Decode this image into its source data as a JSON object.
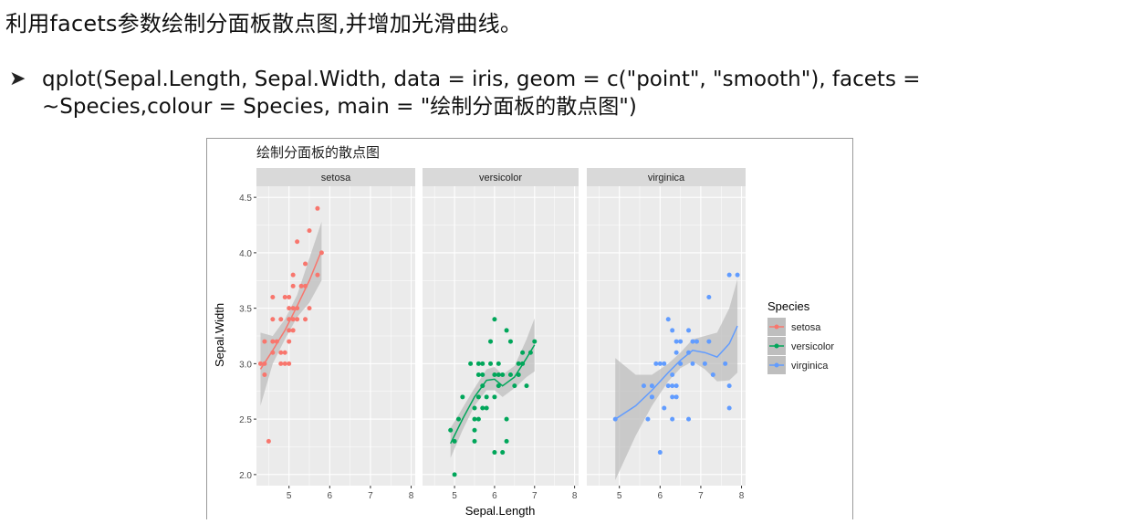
{
  "slide": {
    "heading": "利用facets参数绘制分面板散点图,并增加光滑曲线。",
    "bullet_line1": "qplot(Sepal.Length, Sepal.Width, data = iris, geom = c(\"point\", \"smooth\"), facets =",
    "bullet_line2": "~Species,colour = Species, main = \"绘制分面板的散点图\")",
    "bullet_icon": "arrow-bullet-icon"
  },
  "colors": {
    "setosa": "#F8766D",
    "versicolor": "#00A65A",
    "virginica": "#619CFF",
    "panel_bg": "#EBEBEB",
    "strip_bg": "#D9D9D9",
    "grid": "#FFFFFF",
    "ribbon": "#BEBEBE"
  },
  "chart_data": {
    "type": "scatter",
    "title": "绘制分面板的散点图",
    "xlabel": "Sepal.Length",
    "ylabel": "Sepal.Width",
    "xlim": [
      4.2,
      8.1
    ],
    "ylim": [
      1.9,
      4.6
    ],
    "x_ticks": [
      5,
      6,
      7,
      8
    ],
    "x_tick_labels": [
      "5",
      "6",
      "7",
      "8"
    ],
    "y_ticks": [
      2.0,
      2.5,
      3.0,
      3.5,
      4.0,
      4.5
    ],
    "y_tick_labels": [
      "2.0",
      "2.5",
      "3.0",
      "3.5",
      "4.0",
      "4.5"
    ],
    "grid": true,
    "legend": {
      "title": "Species",
      "position": "right",
      "entries": [
        "setosa",
        "versicolor",
        "virginica"
      ]
    },
    "facets": [
      {
        "name": "setosa",
        "points": [
          [
            4.3,
            3.0
          ],
          [
            4.4,
            2.9
          ],
          [
            4.4,
            3.0
          ],
          [
            4.4,
            3.2
          ],
          [
            4.5,
            2.3
          ],
          [
            4.6,
            3.1
          ],
          [
            4.6,
            3.4
          ],
          [
            4.6,
            3.6
          ],
          [
            4.6,
            3.2
          ],
          [
            4.7,
            3.2
          ],
          [
            4.8,
            3.4
          ],
          [
            4.8,
            3.0
          ],
          [
            4.8,
            3.1
          ],
          [
            4.9,
            3.0
          ],
          [
            4.9,
            3.1
          ],
          [
            4.9,
            3.6
          ],
          [
            5.0,
            3.6
          ],
          [
            5.0,
            3.4
          ],
          [
            5.0,
            3.0
          ],
          [
            5.0,
            3.3
          ],
          [
            5.0,
            3.5
          ],
          [
            5.0,
            3.2
          ],
          [
            5.1,
            3.5
          ],
          [
            5.1,
            3.7
          ],
          [
            5.1,
            3.3
          ],
          [
            5.1,
            3.8
          ],
          [
            5.1,
            3.4
          ],
          [
            5.2,
            3.5
          ],
          [
            5.2,
            3.4
          ],
          [
            5.2,
            4.1
          ],
          [
            5.3,
            3.7
          ],
          [
            5.4,
            3.9
          ],
          [
            5.4,
            3.7
          ],
          [
            5.4,
            3.4
          ],
          [
            5.5,
            4.2
          ],
          [
            5.5,
            3.5
          ],
          [
            5.7,
            4.4
          ],
          [
            5.7,
            3.8
          ],
          [
            5.8,
            4.0
          ]
        ],
        "smooth": [
          [
            4.3,
            2.95
          ],
          [
            4.6,
            3.12
          ],
          [
            4.9,
            3.3
          ],
          [
            5.2,
            3.52
          ],
          [
            5.5,
            3.75
          ],
          [
            5.8,
            4.02
          ]
        ],
        "band_low": [
          [
            4.3,
            2.62
          ],
          [
            4.6,
            3.0
          ],
          [
            4.9,
            3.22
          ],
          [
            5.2,
            3.42
          ],
          [
            5.5,
            3.55
          ],
          [
            5.8,
            3.75
          ]
        ],
        "band_high": [
          [
            4.3,
            3.28
          ],
          [
            4.6,
            3.25
          ],
          [
            4.9,
            3.4
          ],
          [
            5.2,
            3.62
          ],
          [
            5.5,
            3.95
          ],
          [
            5.8,
            4.28
          ]
        ]
      },
      {
        "name": "versicolor",
        "points": [
          [
            4.9,
            2.4
          ],
          [
            5.0,
            2.0
          ],
          [
            5.0,
            2.3
          ],
          [
            5.1,
            2.5
          ],
          [
            5.2,
            2.7
          ],
          [
            5.4,
            3.0
          ],
          [
            5.5,
            2.3
          ],
          [
            5.5,
            2.4
          ],
          [
            5.5,
            2.5
          ],
          [
            5.5,
            2.6
          ],
          [
            5.6,
            2.9
          ],
          [
            5.6,
            3.0
          ],
          [
            5.6,
            2.5
          ],
          [
            5.6,
            2.7
          ],
          [
            5.7,
            2.8
          ],
          [
            5.7,
            2.6
          ],
          [
            5.7,
            3.0
          ],
          [
            5.7,
            2.9
          ],
          [
            5.8,
            2.7
          ],
          [
            5.8,
            2.6
          ],
          [
            5.9,
            3.0
          ],
          [
            5.9,
            3.2
          ],
          [
            6.0,
            2.2
          ],
          [
            6.0,
            2.9
          ],
          [
            6.0,
            2.7
          ],
          [
            6.0,
            3.4
          ],
          [
            6.1,
            2.8
          ],
          [
            6.1,
            3.0
          ],
          [
            6.1,
            2.9
          ],
          [
            6.2,
            2.2
          ],
          [
            6.2,
            2.9
          ],
          [
            6.3,
            3.3
          ],
          [
            6.3,
            2.5
          ],
          [
            6.3,
            2.3
          ],
          [
            6.4,
            3.2
          ],
          [
            6.4,
            2.9
          ],
          [
            6.5,
            2.8
          ],
          [
            6.6,
            2.9
          ],
          [
            6.6,
            3.0
          ],
          [
            6.7,
            3.1
          ],
          [
            6.7,
            3.0
          ],
          [
            6.8,
            2.8
          ],
          [
            6.9,
            3.1
          ],
          [
            7.0,
            3.2
          ]
        ],
        "smooth": [
          [
            4.9,
            2.28
          ],
          [
            5.2,
            2.5
          ],
          [
            5.5,
            2.7
          ],
          [
            5.8,
            2.85
          ],
          [
            6.0,
            2.86
          ],
          [
            6.2,
            2.8
          ],
          [
            6.5,
            2.88
          ],
          [
            6.8,
            3.05
          ],
          [
            7.0,
            3.17
          ]
        ],
        "band_low": [
          [
            4.9,
            2.15
          ],
          [
            5.2,
            2.4
          ],
          [
            5.5,
            2.62
          ],
          [
            5.8,
            2.76
          ],
          [
            6.0,
            2.76
          ],
          [
            6.2,
            2.7
          ],
          [
            6.5,
            2.78
          ],
          [
            6.8,
            2.88
          ],
          [
            7.0,
            2.93
          ]
        ],
        "band_high": [
          [
            4.9,
            2.42
          ],
          [
            5.2,
            2.6
          ],
          [
            5.5,
            2.78
          ],
          [
            5.8,
            2.95
          ],
          [
            6.0,
            2.97
          ],
          [
            6.2,
            2.9
          ],
          [
            6.5,
            2.98
          ],
          [
            6.8,
            3.22
          ],
          [
            7.0,
            3.41
          ]
        ]
      },
      {
        "name": "virginica",
        "points": [
          [
            4.9,
            2.5
          ],
          [
            5.6,
            2.8
          ],
          [
            5.7,
            2.5
          ],
          [
            5.8,
            2.7
          ],
          [
            5.8,
            2.8
          ],
          [
            5.8,
            2.7
          ],
          [
            5.9,
            3.0
          ],
          [
            6.0,
            2.2
          ],
          [
            6.0,
            3.0
          ],
          [
            6.1,
            2.6
          ],
          [
            6.1,
            3.0
          ],
          [
            6.2,
            2.8
          ],
          [
            6.2,
            3.4
          ],
          [
            6.3,
            3.3
          ],
          [
            6.3,
            2.9
          ],
          [
            6.3,
            2.5
          ],
          [
            6.3,
            2.7
          ],
          [
            6.3,
            2.8
          ],
          [
            6.4,
            2.8
          ],
          [
            6.4,
            2.7
          ],
          [
            6.4,
            3.2
          ],
          [
            6.4,
            3.1
          ],
          [
            6.5,
            3.0
          ],
          [
            6.5,
            3.2
          ],
          [
            6.7,
            3.3
          ],
          [
            6.7,
            2.5
          ],
          [
            6.7,
            3.1
          ],
          [
            6.8,
            3.0
          ],
          [
            6.8,
            3.2
          ],
          [
            6.9,
            3.2
          ],
          [
            7.1,
            3.0
          ],
          [
            7.2,
            3.6
          ],
          [
            7.2,
            3.2
          ],
          [
            7.3,
            2.9
          ],
          [
            7.6,
            3.0
          ],
          [
            7.7,
            3.8
          ],
          [
            7.7,
            2.6
          ],
          [
            7.7,
            2.8
          ],
          [
            7.9,
            3.8
          ]
        ],
        "smooth": [
          [
            4.9,
            2.5
          ],
          [
            5.4,
            2.62
          ],
          [
            5.8,
            2.76
          ],
          [
            6.2,
            2.92
          ],
          [
            6.5,
            3.03
          ],
          [
            6.8,
            3.12
          ],
          [
            7.1,
            3.1
          ],
          [
            7.4,
            3.06
          ],
          [
            7.7,
            3.18
          ],
          [
            7.9,
            3.34
          ]
        ],
        "band_low": [
          [
            4.9,
            1.95
          ],
          [
            5.4,
            2.35
          ],
          [
            5.8,
            2.62
          ],
          [
            6.2,
            2.84
          ],
          [
            6.5,
            2.96
          ],
          [
            6.8,
            3.02
          ],
          [
            7.1,
            2.95
          ],
          [
            7.4,
            2.84
          ],
          [
            7.7,
            2.85
          ],
          [
            7.9,
            2.92
          ]
        ],
        "band_high": [
          [
            4.9,
            3.05
          ],
          [
            5.4,
            2.9
          ],
          [
            5.8,
            2.9
          ],
          [
            6.2,
            3.0
          ],
          [
            6.5,
            3.1
          ],
          [
            6.8,
            3.22
          ],
          [
            7.1,
            3.25
          ],
          [
            7.4,
            3.28
          ],
          [
            7.7,
            3.5
          ],
          [
            7.9,
            3.76
          ]
        ]
      }
    ]
  }
}
